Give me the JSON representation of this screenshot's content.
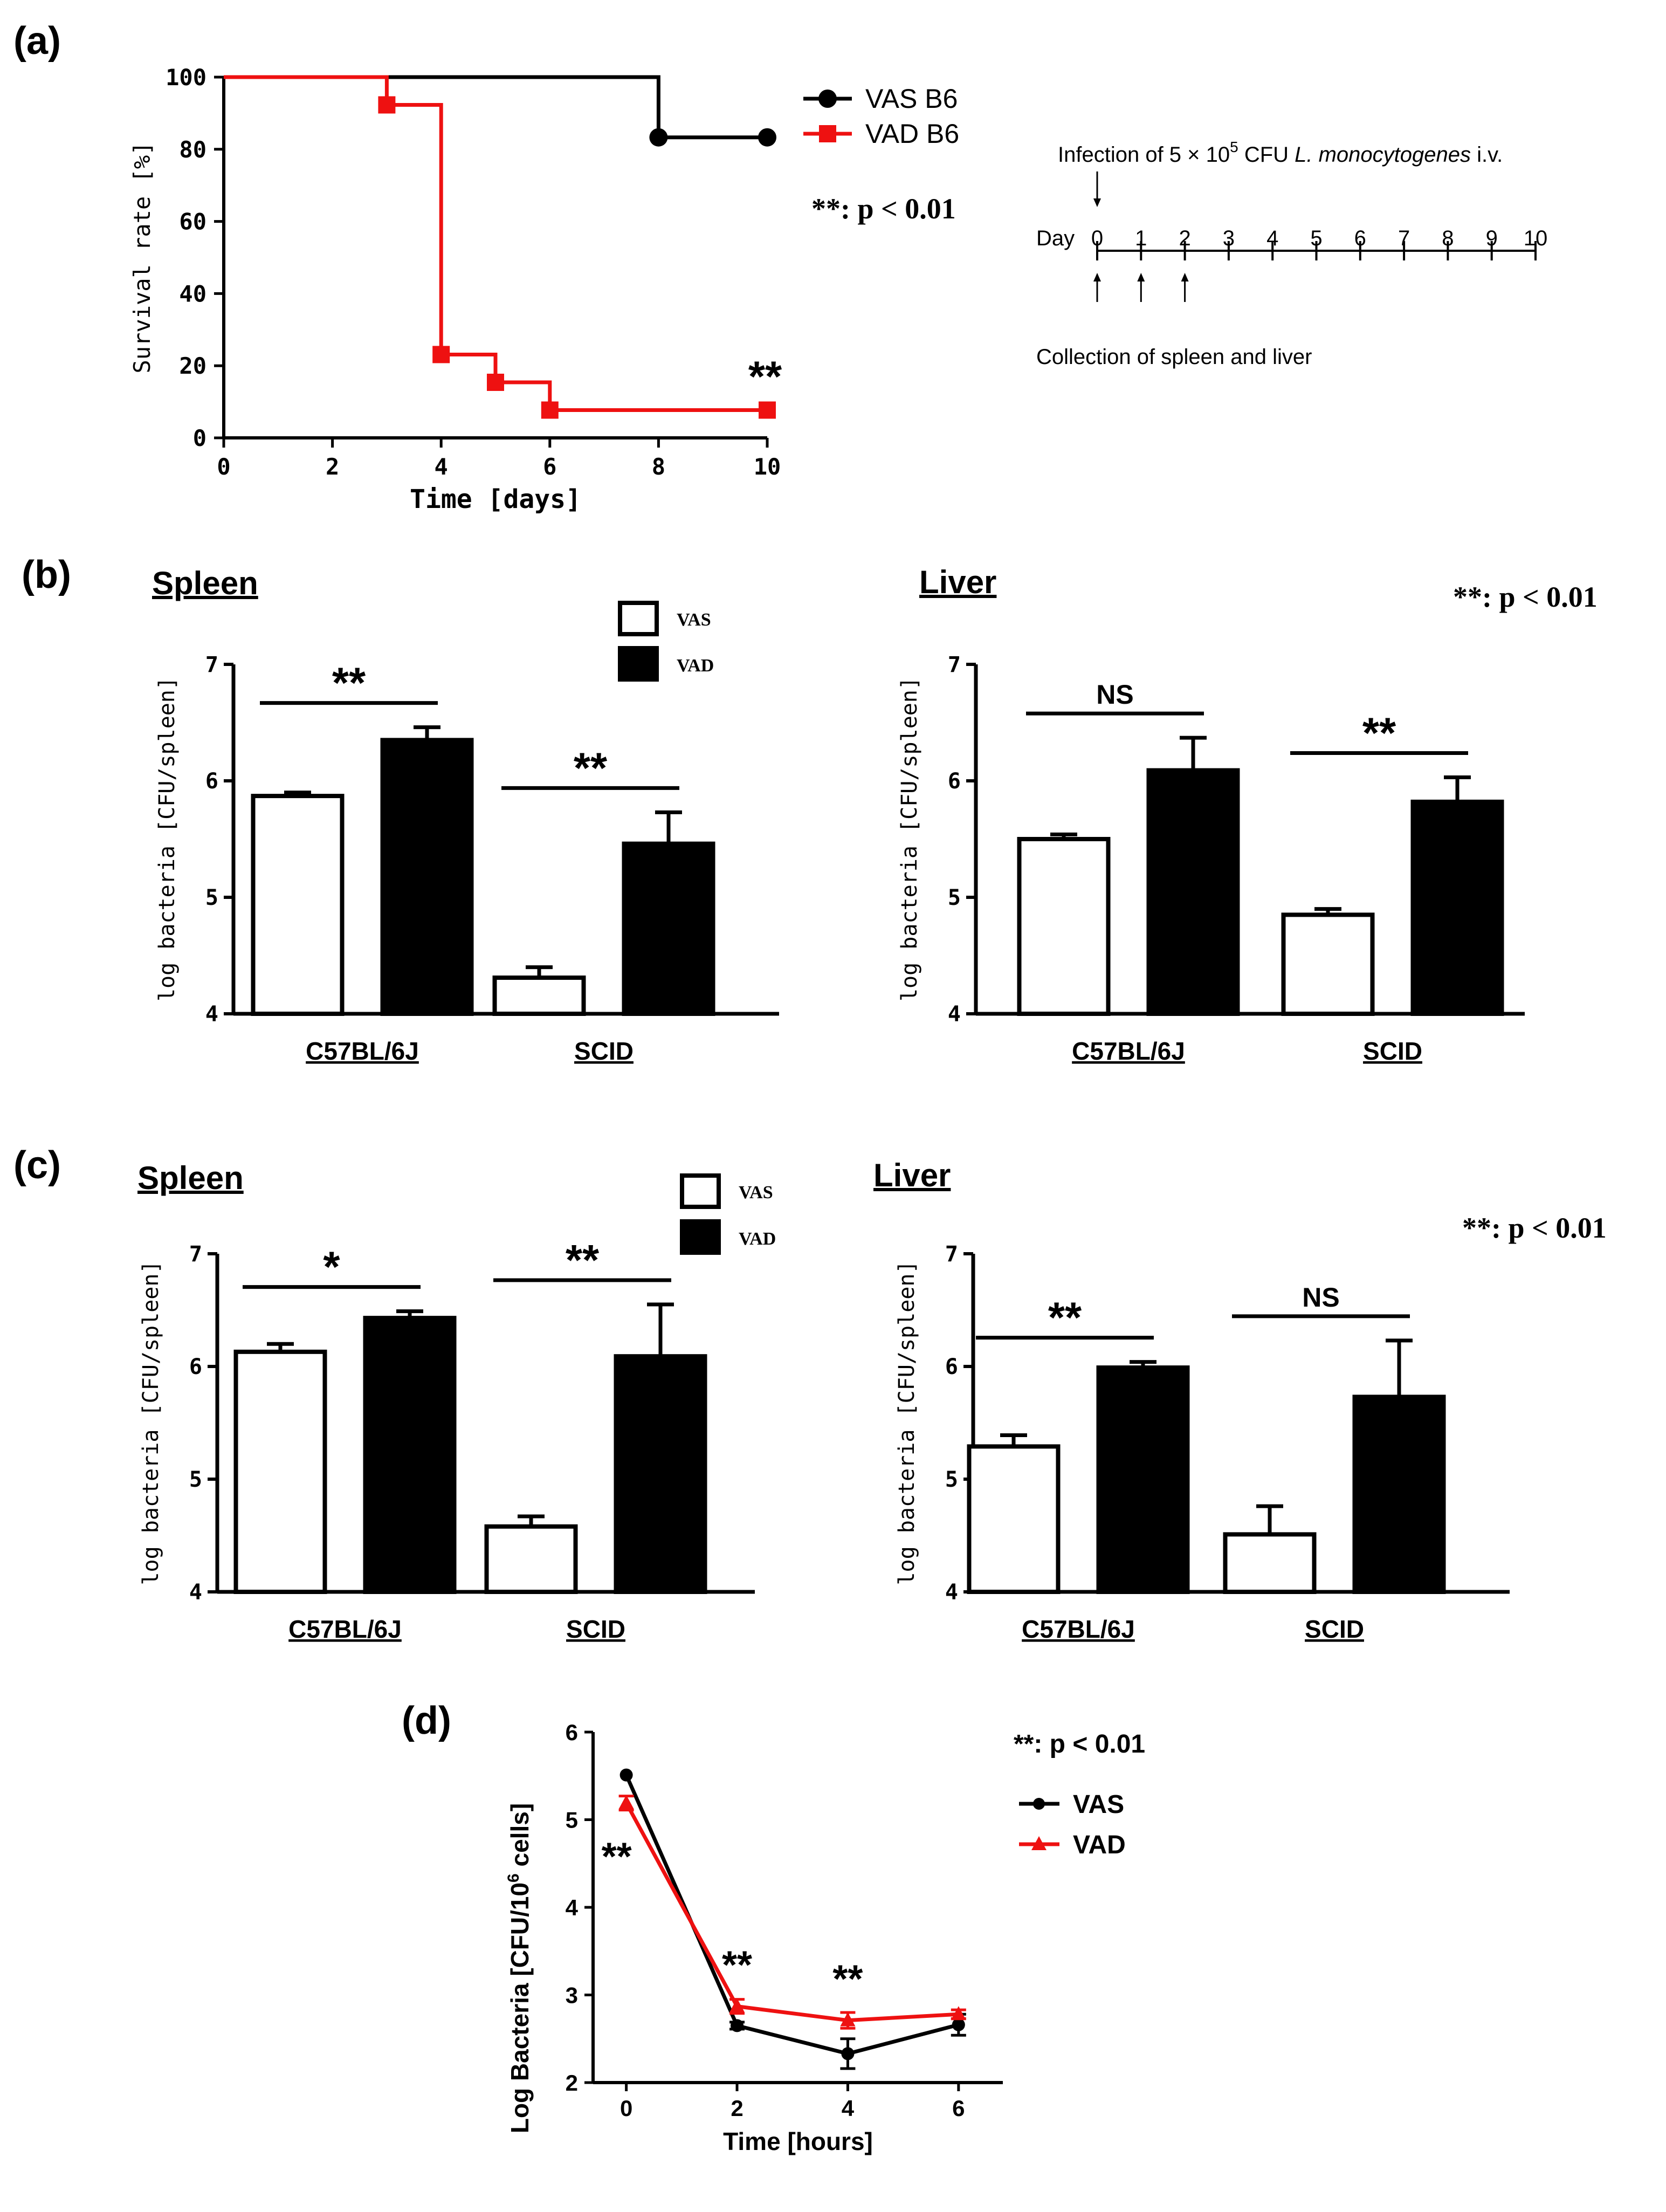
{
  "colors": {
    "vas": "#000000",
    "vad": "#ee1111",
    "axis": "#000000",
    "bg": "#ffffff"
  },
  "panels": {
    "a": {
      "label": "(a)"
    },
    "b": {
      "label": "(b)",
      "pvalue_note": "**: p < 0.01"
    },
    "c": {
      "label": "(c)",
      "pvalue_note": "**: p < 0.01"
    },
    "d": {
      "label": "(d)",
      "pvalue_note": "**: p < 0.01"
    }
  },
  "timeline": {
    "infection_text": "Infection of 5 × 10⁵ CFU L. monocytogenes i.v.",
    "infection_parts": {
      "pre": "Infection of 5 × 10",
      "exp": "5",
      "mid": " CFU ",
      "organism": "L. monocytogenes",
      "post": " i.v."
    },
    "day_label": "Day",
    "days": [
      "0",
      "1",
      "2",
      "3",
      "4",
      "5",
      "6",
      "7",
      "8",
      "9",
      "10"
    ],
    "collection_days": [
      0,
      1,
      2
    ],
    "collection_text": "Collection of spleen and liver"
  },
  "chart_data": [
    {
      "id": "a",
      "type": "line",
      "subtype": "kaplan-meier-step",
      "title": "",
      "xlabel": "Time [days]",
      "ylabel": "Survival rate [%]",
      "xlim": [
        0,
        10
      ],
      "ylim": [
        0,
        100
      ],
      "xticks": [
        0,
        2,
        4,
        6,
        8,
        10
      ],
      "yticks": [
        0,
        20,
        40,
        60,
        80,
        100
      ],
      "legend_position": "top-right",
      "pvalue_note": "**: p < 0.01",
      "annotations": [
        {
          "x": 10,
          "y": 7.7,
          "text": "**"
        }
      ],
      "series": [
        {
          "name": "VAS B6",
          "marker": "circle",
          "color": "#000000",
          "steps": [
            [
              0,
              100
            ],
            [
              8,
              100
            ],
            [
              8,
              83.3
            ],
            [
              10,
              83.3
            ]
          ],
          "markers": [
            [
              8,
              83.3
            ],
            [
              10,
              83.3
            ]
          ]
        },
        {
          "name": "VAD B6",
          "marker": "square",
          "color": "#ee1111",
          "steps": [
            [
              0,
              100
            ],
            [
              3,
              100
            ],
            [
              3,
              92.3
            ],
            [
              4,
              92.3
            ],
            [
              4,
              23.1
            ],
            [
              5,
              23.1
            ],
            [
              5,
              15.4
            ],
            [
              6,
              15.4
            ],
            [
              6,
              7.7
            ],
            [
              10,
              7.7
            ]
          ],
          "markers": [
            [
              3,
              92.3
            ],
            [
              4,
              23.1
            ],
            [
              5,
              15.4
            ],
            [
              6,
              7.7
            ],
            [
              10,
              7.7
            ]
          ]
        }
      ]
    },
    {
      "id": "b-spleen",
      "type": "bar",
      "title": "Spleen",
      "xlabel": "",
      "ylabel": "log bacteria [CFU/spleen]",
      "ylim": [
        4,
        7
      ],
      "yticks": [
        4,
        5,
        6,
        7
      ],
      "categories": [
        "C57BL/6J",
        "SCID"
      ],
      "legend_position": "top-right",
      "series": [
        {
          "name": "VAS",
          "fill": "#ffffff",
          "values": [
            5.87,
            4.31
          ],
          "errors": [
            0.03,
            0.09
          ]
        },
        {
          "name": "VAD",
          "fill": "#000000",
          "values": [
            6.35,
            5.46
          ],
          "errors": [
            0.11,
            0.27
          ]
        }
      ],
      "significance": [
        "**",
        "**"
      ]
    },
    {
      "id": "b-liver",
      "type": "bar",
      "title": "Liver",
      "xlabel": "",
      "ylabel": "log bacteria [CFU/spleen]",
      "ylim": [
        4,
        7
      ],
      "yticks": [
        4,
        5,
        6,
        7
      ],
      "categories": [
        "C57BL/6J",
        "SCID"
      ],
      "series": [
        {
          "name": "VAS",
          "fill": "#ffffff",
          "values": [
            5.5,
            4.85
          ],
          "errors": [
            0.04,
            0.05
          ]
        },
        {
          "name": "VAD",
          "fill": "#000000",
          "values": [
            6.09,
            5.82
          ],
          "errors": [
            0.28,
            0.21
          ]
        }
      ],
      "significance": [
        "NS",
        "**"
      ]
    },
    {
      "id": "c-spleen",
      "type": "bar",
      "title": "Spleen",
      "xlabel": "",
      "ylabel": "log bacteria [CFU/spleen]",
      "ylim": [
        4,
        7
      ],
      "yticks": [
        4,
        5,
        6,
        7
      ],
      "categories": [
        "C57BL/6J",
        "SCID"
      ],
      "legend_position": "top-right",
      "series": [
        {
          "name": "VAS",
          "fill": "#ffffff",
          "values": [
            6.13,
            4.58
          ],
          "errors": [
            0.07,
            0.09
          ]
        },
        {
          "name": "VAD",
          "fill": "#000000",
          "values": [
            6.43,
            6.09
          ],
          "errors": [
            0.06,
            0.46
          ]
        }
      ],
      "significance": [
        "*",
        "**"
      ]
    },
    {
      "id": "c-liver",
      "type": "bar",
      "title": "Liver",
      "xlabel": "",
      "ylabel": "log bacteria [CFU/spleen]",
      "ylim": [
        4,
        7
      ],
      "yticks": [
        4,
        5,
        6,
        7
      ],
      "categories": [
        "C57BL/6J",
        "SCID"
      ],
      "series": [
        {
          "name": "VAS",
          "fill": "#ffffff",
          "values": [
            5.29,
            4.51
          ],
          "errors": [
            0.1,
            0.25
          ]
        },
        {
          "name": "VAD",
          "fill": "#000000",
          "values": [
            5.99,
            5.73
          ],
          "errors": [
            0.05,
            0.5
          ]
        }
      ],
      "significance": [
        "**",
        "NS"
      ]
    },
    {
      "id": "d",
      "type": "line",
      "title": "",
      "xlabel": "Time [hours]",
      "ylabel": "Log Bacteria [CFU/10⁶ cells]",
      "ylabel_parts": {
        "pre": "Log Bacteria [CFU/10",
        "exp": "6",
        "post": " cells]"
      },
      "xlim": [
        -0.6,
        6.8
      ],
      "ylim": [
        2,
        6
      ],
      "xticks": [
        0,
        2,
        4,
        6
      ],
      "yticks": [
        2,
        3,
        4,
        5,
        6
      ],
      "legend_position": "top-right",
      "pvalue_note": "**: p < 0.01",
      "series": [
        {
          "name": "VAS",
          "marker": "circle",
          "color": "#000000",
          "x": [
            0,
            2,
            4,
            6
          ],
          "y": [
            5.51,
            2.65,
            2.33,
            2.66
          ],
          "errors": [
            0.02,
            0.04,
            0.17,
            0.12
          ]
        },
        {
          "name": "VAD",
          "marker": "triangle",
          "color": "#ee1111",
          "x": [
            0,
            2,
            4,
            6
          ],
          "y": [
            5.19,
            2.87,
            2.71,
            2.78
          ],
          "errors": [
            0.08,
            0.08,
            0.09,
            0.05
          ]
        }
      ],
      "annotations": [
        {
          "x": 0,
          "text": "**"
        },
        {
          "x": 2,
          "text": "**"
        },
        {
          "x": 4,
          "text": "**"
        }
      ]
    }
  ]
}
